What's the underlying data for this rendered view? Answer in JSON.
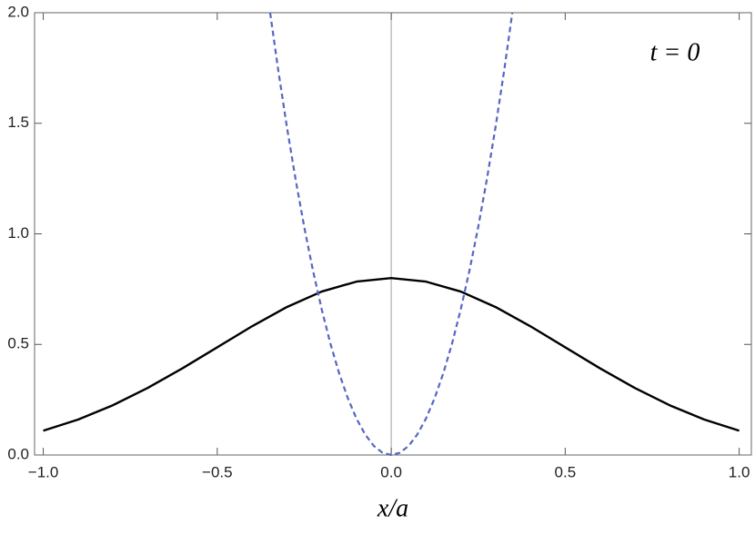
{
  "chart_data": {
    "type": "line",
    "xlabel": "x/a",
    "annotation": "t = 0",
    "xlim": [
      -1.025,
      1.035
    ],
    "ylim": [
      0,
      2
    ],
    "xticks": [
      {
        "value": -1.0,
        "label": "−1.0"
      },
      {
        "value": -0.5,
        "label": "−0.5"
      },
      {
        "value": 0.0,
        "label": "0.0"
      },
      {
        "value": 0.5,
        "label": "0.5"
      },
      {
        "value": 1.0,
        "label": "1.0"
      }
    ],
    "yticks": [
      {
        "value": 0.0,
        "label": "0.0"
      },
      {
        "value": 0.5,
        "label": "0.5"
      },
      {
        "value": 1.0,
        "label": "1.0"
      },
      {
        "value": 1.5,
        "label": "1.5"
      },
      {
        "value": 2.0,
        "label": "2.0"
      }
    ],
    "series": [
      {
        "color": "#000000",
        "dashed": false,
        "x": [
          -1.0,
          -0.9,
          -0.8,
          -0.7,
          -0.6,
          -0.5,
          -0.4,
          -0.3,
          -0.2,
          -0.1,
          0.0,
          0.1,
          0.2,
          0.3,
          0.4,
          0.5,
          0.6,
          0.7,
          0.8,
          0.9,
          1.0
        ],
        "values": [
          0.11,
          0.16,
          0.225,
          0.303,
          0.392,
          0.487,
          0.582,
          0.669,
          0.739,
          0.784,
          0.8,
          0.784,
          0.739,
          0.669,
          0.582,
          0.487,
          0.392,
          0.303,
          0.225,
          0.16,
          0.11
        ]
      },
      {
        "color": "#5566c4",
        "dashed": true,
        "x": [
          -0.348,
          -0.325,
          -0.3,
          -0.275,
          -0.25,
          -0.225,
          -0.2,
          -0.175,
          -0.15,
          -0.125,
          -0.1,
          -0.075,
          -0.05,
          -0.025,
          0.0,
          0.025,
          0.05,
          0.075,
          0.1,
          0.125,
          0.15,
          0.175,
          0.2,
          0.225,
          0.25,
          0.275,
          0.3,
          0.325,
          0.348
        ],
        "values": [
          2.0,
          1.743,
          1.485,
          1.248,
          1.031,
          0.835,
          0.66,
          0.505,
          0.371,
          0.258,
          0.165,
          0.093,
          0.041,
          0.01,
          0.0,
          0.01,
          0.041,
          0.093,
          0.165,
          0.258,
          0.371,
          0.505,
          0.66,
          0.835,
          1.031,
          1.248,
          1.485,
          1.743,
          2.0
        ]
      }
    ]
  }
}
